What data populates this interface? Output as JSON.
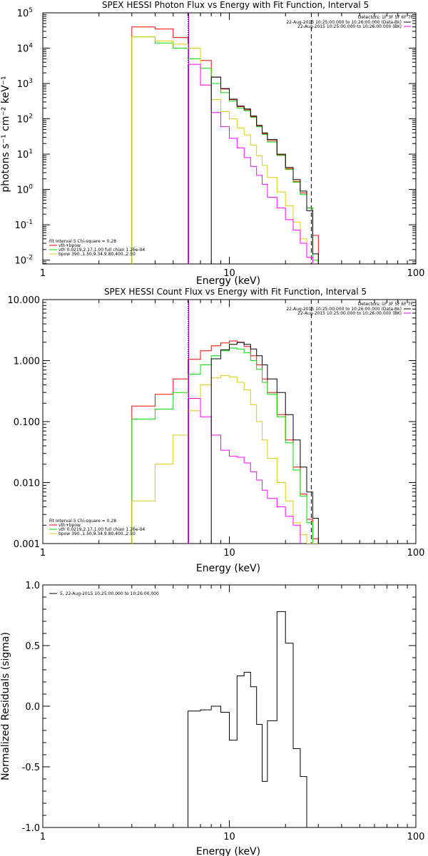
{
  "colors": {
    "total": "#ff0000",
    "vth": "#00dd00",
    "bpow": "#ddcc00",
    "bk": "#ff00ff",
    "data": "#000000"
  },
  "chart_data": [
    {
      "type": "line",
      "title": "SPEX HESSI Photon Flux vs Energy with Fit Function, Interval 5",
      "xlabel": "Energy (keV)",
      "ylabel": "photons s⁻¹ cm⁻² keV⁻¹",
      "xscale": "log",
      "yscale": "log",
      "xlim": [
        1,
        100
      ],
      "ylim": [
        0.0078,
        100000
      ],
      "xticks": [
        {
          "v": 1,
          "label": "1"
        },
        {
          "v": 10,
          "label": "10"
        },
        {
          "v": 100,
          "label": "100"
        }
      ],
      "yticks": [
        {
          "v": 0.01,
          "base": "10",
          "exp": "-2"
        },
        {
          "v": 0.1,
          "base": "10",
          "exp": "-1"
        },
        {
          "v": 1,
          "base": "10",
          "exp": "0"
        },
        {
          "v": 10,
          "base": "10",
          "exp": "1"
        },
        {
          "v": 100,
          "base": "10",
          "exp": "2"
        },
        {
          "v": 1000,
          "base": "10",
          "exp": "3"
        },
        {
          "v": 10000,
          "base": "10",
          "exp": "4"
        },
        {
          "v": 100000,
          "base": "10",
          "exp": "5"
        }
      ],
      "vlines": [
        {
          "x": 6.0,
          "style": "dotted",
          "color": "#000000"
        },
        {
          "x": 6.0,
          "style": "solid",
          "color": "#aa00cc"
        },
        {
          "x": 27.5,
          "style": "dashed",
          "color": "#000000"
        }
      ],
      "energy_edges": [
        3,
        4,
        5,
        6,
        7,
        8,
        9,
        10,
        11,
        12,
        13,
        14,
        15,
        16,
        18,
        20,
        22,
        24,
        26,
        28,
        30
      ],
      "series": [
        {
          "name": "vth+bpow",
          "color_key": "total",
          "values": [
            40000,
            35000,
            20000,
            10000,
            4500,
            1500,
            700,
            350,
            220,
            180,
            115,
            62,
            38,
            24,
            9.5,
            3.9,
            1.7,
            0.8,
            0.3,
            0.05
          ]
        },
        {
          "name": "vth 0.0219,2.17,1.00 full chian 1.26e-04",
          "color_key": "vth",
          "values": [
            21000,
            14000,
            10000,
            5000,
            2700,
            1000,
            550,
            320,
            200,
            170,
            110,
            60,
            36,
            22,
            9.2,
            3.7,
            1.6,
            0.72,
            0.3,
            0.01
          ]
        },
        {
          "name": "bpow 390.,1.50,9.34,9.80,400.,2.50",
          "color_key": "bpow",
          "values": [
            21000,
            16000,
            13000,
            10000,
            900,
            350,
            160,
            100,
            55,
            35,
            18,
            9,
            4.8,
            2.2,
            0.85,
            0.35,
            0.12,
            0.04,
            0.012,
            0.007
          ]
        },
        {
          "name": "22-Aug-2015 10:25:00.000 to 10:26:00.000 (BK)",
          "color_key": "bk",
          "values": [
            null,
            null,
            null,
            3500,
            900,
            150,
            60,
            28,
            15,
            8,
            4.5,
            2.5,
            1.4,
            0.6,
            0.3,
            0.14,
            0.07,
            0.03,
            0.012,
            0.007
          ]
        },
        {
          "name": "",
          "color_key": "data",
          "values": [
            null,
            null,
            null,
            null,
            null,
            1520,
            720,
            360,
            230,
            190,
            120,
            65,
            40,
            26,
            10,
            4.2,
            1.9,
            0.9,
            0.25,
            0.015
          ]
        }
      ],
      "legend": {
        "position": "bottom-left",
        "header": "Fit Interval 5    Chi-square = 0.28",
        "entries": [
          {
            "label": "vth+bpow",
            "color_key": "total"
          },
          {
            "label": "vth 0.0219,2.17,1.00  full chian 1.26e-04",
            "color_key": "vth"
          },
          {
            "label": "bpow 390.,1.50,9.34,9.80,400.,2.50",
            "color_key": "bpow"
          }
        ]
      },
      "info": {
        "position": "top-right",
        "detectors": "Detectors: 1F 3F 5F 6F 7F",
        "entries": [
          {
            "label": "22-Aug-2015 10:25:00.000 to 10:26:00.000 (Data-Bk)",
            "color_key": "data"
          },
          {
            "label": "22-Aug-2015 10:25:00.000 to 10:26:00.000 (BK)",
            "color_key": "bk"
          }
        ]
      }
    },
    {
      "type": "line",
      "title": "SPEX HESSI Count Flux vs Energy with Fit Function, Interval 5",
      "xlabel": "Energy (keV)",
      "ylabel": "",
      "xscale": "log",
      "yscale": "log",
      "xlim": [
        1,
        100
      ],
      "ylim": [
        0.001,
        10
      ],
      "xticks": [
        {
          "v": 1,
          "label": "1"
        },
        {
          "v": 10,
          "label": "10"
        },
        {
          "v": 100,
          "label": "100"
        }
      ],
      "yticks": [
        {
          "v": 0.001,
          "label": "0.001"
        },
        {
          "v": 0.01,
          "label": "0.010"
        },
        {
          "v": 0.1,
          "label": "0.100"
        },
        {
          "v": 1,
          "label": "1.000"
        },
        {
          "v": 10,
          "label": "10.000"
        }
      ],
      "vlines": [
        {
          "x": 6.0,
          "style": "dotted",
          "color": "#000000"
        },
        {
          "x": 6.0,
          "style": "solid",
          "color": "#aa00cc"
        },
        {
          "x": 27.5,
          "style": "dashed",
          "color": "#000000"
        }
      ],
      "energy_edges": [
        3,
        4,
        5,
        6,
        7,
        8,
        9,
        10,
        11,
        12,
        13,
        14,
        15,
        16,
        18,
        20,
        22,
        24,
        26,
        28,
        30
      ],
      "series": [
        {
          "name": "vth+bpow",
          "color_key": "total",
          "values": [
            0.18,
            0.28,
            0.5,
            1.05,
            1.45,
            1.75,
            1.95,
            2.1,
            2.0,
            1.7,
            1.2,
            0.85,
            0.5,
            0.3,
            0.13,
            0.05,
            0.018,
            0.0065,
            0.0025,
            0.0012
          ]
        },
        {
          "name": "vth 0.0219,2.17,1.00 full chian 1.26e-04",
          "color_key": "vth",
          "values": [
            0.11,
            0.16,
            0.3,
            0.6,
            0.85,
            1.2,
            1.45,
            1.6,
            1.55,
            1.35,
            1.0,
            0.72,
            0.44,
            0.28,
            0.12,
            0.045,
            0.016,
            0.006,
            0.0022,
            0.001
          ]
        },
        {
          "name": "bpow 390.,1.50,9.34,9.80,400.,2.50",
          "color_key": "bpow",
          "values": [
            0.005,
            0.02,
            0.06,
            0.15,
            0.4,
            0.52,
            0.57,
            0.54,
            0.44,
            0.33,
            0.19,
            0.1,
            0.05,
            0.025,
            0.01,
            0.005,
            0.0022,
            0.0014,
            0.001,
            0.001
          ]
        },
        {
          "name": "22-Aug-2015 10:25:00.000 to 10:26:00.000 (BK)",
          "color_key": "bk",
          "values": [
            null,
            null,
            null,
            0.24,
            0.12,
            0.06,
            0.034,
            0.027,
            0.026,
            0.021,
            0.015,
            0.011,
            0.0075,
            0.0055,
            0.004,
            0.0028,
            0.002,
            null,
            null,
            null
          ]
        },
        {
          "name": "",
          "color_key": "data",
          "values": [
            null,
            null,
            null,
            null,
            null,
            1.07,
            1.5,
            1.85,
            1.98,
            1.85,
            1.55,
            1.2,
            0.85,
            0.5,
            0.3,
            0.13,
            0.05,
            0.018,
            0.007,
            0.0026
          ]
        }
      ],
      "legend": {
        "position": "bottom-left",
        "header": "Fit Interval 5    Chi-square = 0.28",
        "entries": [
          {
            "label": "vth+bpow",
            "color_key": "total"
          },
          {
            "label": "vth 0.0219,2.17,1.00  full chian 1.26e-04",
            "color_key": "vth"
          },
          {
            "label": "bpow 390.,1.50,9.34,9.80,400.,2.50",
            "color_key": "bpow"
          }
        ]
      },
      "info": {
        "position": "top-right",
        "detectors": "Detectors: 1F 3F 5F 6F 7F",
        "entries": [
          {
            "label": "22-Aug-2015 10:25:00.000 to 10:26:00.000 (Data-Bk)",
            "color_key": "data"
          },
          {
            "label": "22-Aug-2015 10:25:00.000 to 10:26:00.000 (BK)",
            "color_key": "bk"
          }
        ]
      }
    },
    {
      "type": "line",
      "title": "",
      "xlabel": "Energy (keV)",
      "ylabel": "Normalized Residuals (sigma)",
      "xscale": "log",
      "yscale": "linear",
      "xlim": [
        1,
        100
      ],
      "ylim": [
        -1.0,
        1.0
      ],
      "xticks": [
        {
          "v": 1,
          "label": "1"
        },
        {
          "v": 10,
          "label": "10"
        },
        {
          "v": 100,
          "label": "100"
        }
      ],
      "yticks": [
        {
          "v": -1.0,
          "label": "-1.0"
        },
        {
          "v": -0.5,
          "label": "-0.5"
        },
        {
          "v": 0.0,
          "label": "0.0"
        },
        {
          "v": 0.5,
          "label": "0.5"
        },
        {
          "v": 1.0,
          "label": "1.0"
        }
      ],
      "vlines": [],
      "energy_edges": [
        6,
        7,
        8,
        9,
        10,
        11,
        12,
        13,
        14,
        15,
        16,
        18,
        20,
        22,
        24,
        26,
        28
      ],
      "series": [
        {
          "name": "",
          "color_key": "data",
          "values": [
            -0.04,
            -0.03,
            0.0,
            -0.05,
            -0.28,
            0.25,
            0.28,
            0.16,
            -0.15,
            -0.62,
            -0.12,
            0.78,
            0.52,
            -0.35,
            -0.58,
            -1.0
          ]
        }
      ],
      "legend": {
        "position": "top-left",
        "header": "",
        "entries": [
          {
            "label": "5, 22-Aug-2015 10:25:00.000 to 10:26:00.000",
            "color_key": "data"
          }
        ]
      },
      "info": null
    }
  ]
}
